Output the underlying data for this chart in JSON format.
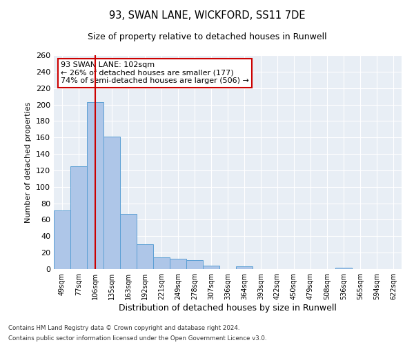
{
  "title1": "93, SWAN LANE, WICKFORD, SS11 7DE",
  "title2": "Size of property relative to detached houses in Runwell",
  "xlabel": "Distribution of detached houses by size in Runwell",
  "ylabel": "Number of detached properties",
  "categories": [
    "49sqm",
    "77sqm",
    "106sqm",
    "135sqm",
    "163sqm",
    "192sqm",
    "221sqm",
    "249sqm",
    "278sqm",
    "307sqm",
    "336sqm",
    "364sqm",
    "393sqm",
    "422sqm",
    "450sqm",
    "479sqm",
    "508sqm",
    "536sqm",
    "565sqm",
    "594sqm",
    "622sqm"
  ],
  "values": [
    71,
    125,
    203,
    161,
    67,
    30,
    14,
    13,
    11,
    4,
    0,
    3,
    0,
    0,
    0,
    0,
    0,
    2,
    0,
    0,
    0
  ],
  "bar_color": "#aec6e8",
  "bar_edge_color": "#5a9fd4",
  "vline_x": 2,
  "vline_color": "#cc0000",
  "annotation_text": "93 SWAN LANE: 102sqm\n← 26% of detached houses are smaller (177)\n74% of semi-detached houses are larger (506) →",
  "annotation_box_color": "#ffffff",
  "annotation_box_edge": "#cc0000",
  "ylim": [
    0,
    260
  ],
  "yticks": [
    0,
    20,
    40,
    60,
    80,
    100,
    120,
    140,
    160,
    180,
    200,
    220,
    240,
    260
  ],
  "bg_color": "#e8eef5",
  "footer1": "Contains HM Land Registry data © Crown copyright and database right 2024.",
  "footer2": "Contains public sector information licensed under the Open Government Licence v3.0."
}
